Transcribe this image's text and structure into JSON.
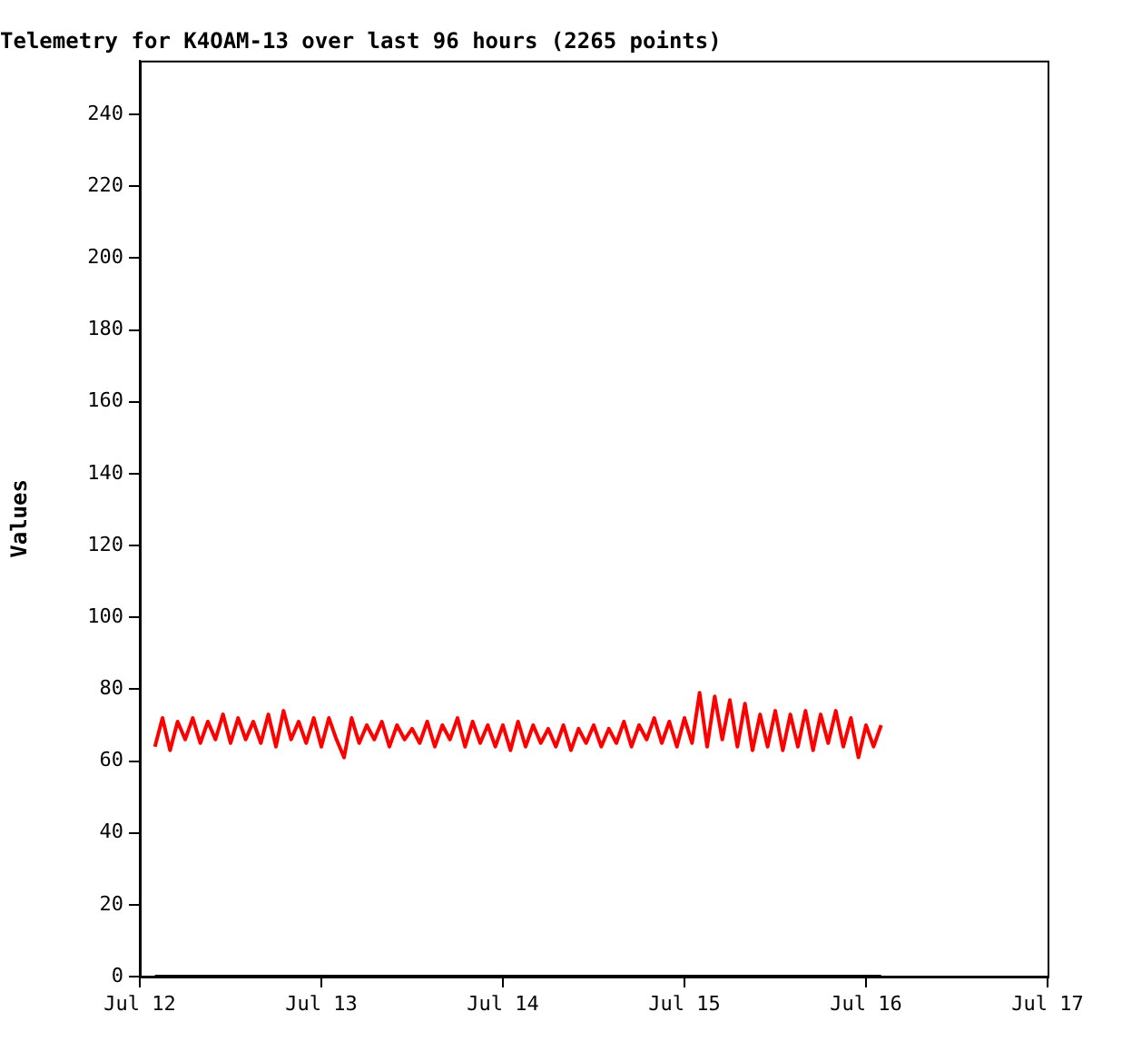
{
  "chart_data": {
    "type": "line",
    "title": "Telemetry for K4OAM-13 over last 96 hours (2265 points)",
    "ylabel": "Values",
    "x": [
      "--07-12T02:00",
      "--07-12T03:00",
      "--07-12T04:00",
      "--07-12T05:00",
      "--07-12T06:00",
      "--07-12T07:00",
      "--07-12T08:00",
      "--07-12T09:00",
      "--07-12T10:00",
      "--07-12T11:00",
      "--07-12T12:00",
      "--07-12T13:00",
      "--07-12T14:00",
      "--07-12T15:00",
      "--07-12T16:00",
      "--07-12T17:00",
      "--07-12T18:00",
      "--07-12T19:00",
      "--07-12T20:00",
      "--07-12T21:00",
      "--07-12T22:00",
      "--07-12T23:00",
      "--07-13T00:00",
      "--07-13T01:00",
      "--07-13T02:00",
      "--07-13T03:00",
      "--07-13T04:00",
      "--07-13T05:00",
      "--07-13T06:00",
      "--07-13T07:00",
      "--07-13T08:00",
      "--07-13T09:00",
      "--07-13T10:00",
      "--07-13T11:00",
      "--07-13T12:00",
      "--07-13T13:00",
      "--07-13T14:00",
      "--07-13T15:00",
      "--07-13T16:00",
      "--07-13T17:00",
      "--07-13T18:00",
      "--07-13T19:00",
      "--07-13T20:00",
      "--07-13T21:00",
      "--07-13T22:00",
      "--07-13T23:00",
      "--07-14T00:00",
      "--07-14T01:00",
      "--07-14T02:00",
      "--07-14T03:00",
      "--07-14T04:00",
      "--07-14T05:00",
      "--07-14T06:00",
      "--07-14T07:00",
      "--07-14T08:00",
      "--07-14T09:00",
      "--07-14T10:00",
      "--07-14T11:00",
      "--07-14T12:00",
      "--07-14T13:00",
      "--07-14T14:00",
      "--07-14T15:00",
      "--07-14T16:00",
      "--07-14T17:00",
      "--07-14T18:00",
      "--07-14T19:00",
      "--07-14T20:00",
      "--07-14T21:00",
      "--07-14T22:00",
      "--07-14T23:00",
      "--07-15T00:00",
      "--07-15T01:00",
      "--07-15T02:00",
      "--07-15T03:00",
      "--07-15T04:00",
      "--07-15T05:00",
      "--07-15T06:00",
      "--07-15T07:00",
      "--07-15T08:00",
      "--07-15T09:00",
      "--07-15T10:00",
      "--07-15T11:00",
      "--07-15T12:00",
      "--07-15T13:00",
      "--07-15T14:00",
      "--07-15T15:00",
      "--07-15T16:00",
      "--07-15T17:00",
      "--07-15T18:00",
      "--07-15T19:00",
      "--07-15T20:00",
      "--07-15T21:00",
      "--07-15T22:00",
      "--07-15T23:00",
      "--07-16T00:00",
      "--07-16T01:00",
      "--07-16T02:00"
    ],
    "series": [
      {
        "color": "#ff0000",
        "values": [
          64,
          72,
          63,
          71,
          66,
          72,
          65,
          71,
          66,
          73,
          65,
          72,
          66,
          71,
          65,
          73,
          64,
          74,
          66,
          71,
          65,
          72,
          64,
          72,
          66,
          61,
          72,
          65,
          70,
          66,
          71,
          64,
          70,
          66,
          69,
          65,
          71,
          64,
          70,
          66,
          72,
          64,
          71,
          65,
          70,
          64,
          70,
          63,
          71,
          64,
          70,
          65,
          69,
          64,
          70,
          63,
          69,
          65,
          70,
          64,
          69,
          65,
          71,
          64,
          70,
          66,
          72,
          65,
          71,
          64,
          72,
          65,
          79,
          64,
          78,
          66,
          77,
          64,
          76,
          63,
          73,
          64,
          74,
          63,
          73,
          64,
          74,
          63,
          73,
          65,
          74,
          64,
          72,
          61,
          70,
          64,
          70
        ]
      },
      {
        "color": "#000000",
        "x": [
          "--07-12T02:00",
          "--07-16T02:00"
        ],
        "values": [
          0,
          0
        ]
      }
    ],
    "xlim": [
      "--07-12",
      "--07-17"
    ],
    "xticks": [
      {
        "value": "--07-12",
        "label": "Jul 12"
      },
      {
        "value": "--07-13",
        "label": "Jul 13"
      },
      {
        "value": "--07-14",
        "label": "Jul 14"
      },
      {
        "value": "--07-15",
        "label": "Jul 15"
      },
      {
        "value": "--07-16",
        "label": "Jul 16"
      },
      {
        "value": "--07-17",
        "label": "Jul 17"
      }
    ],
    "ylim": [
      0,
      255
    ],
    "yticks": [
      0,
      20,
      40,
      60,
      80,
      100,
      120,
      140,
      160,
      180,
      200,
      220,
      240
    ],
    "grid": false,
    "legend": false,
    "marker": "none",
    "line_style": "solid"
  }
}
